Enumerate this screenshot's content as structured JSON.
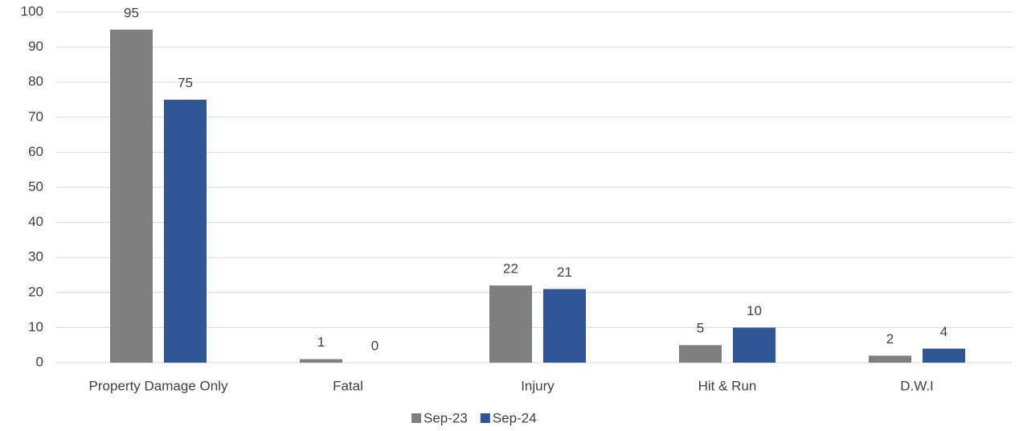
{
  "chart_data": {
    "type": "bar",
    "categories": [
      "Property Damage Only",
      "Fatal",
      "Injury",
      "Hit & Run",
      "D.W.I"
    ],
    "series": [
      {
        "name": "Sep-23",
        "color": "#7f7f7f",
        "values": [
          95,
          1,
          22,
          5,
          2
        ]
      },
      {
        "name": "Sep-24",
        "color": "#2f5597",
        "values": [
          75,
          0,
          21,
          10,
          4
        ]
      }
    ],
    "ylim": [
      0,
      100
    ],
    "yticks": [
      0,
      10,
      20,
      30,
      40,
      50,
      60,
      70,
      80,
      90,
      100
    ],
    "grid": true,
    "legend": "bottom"
  }
}
